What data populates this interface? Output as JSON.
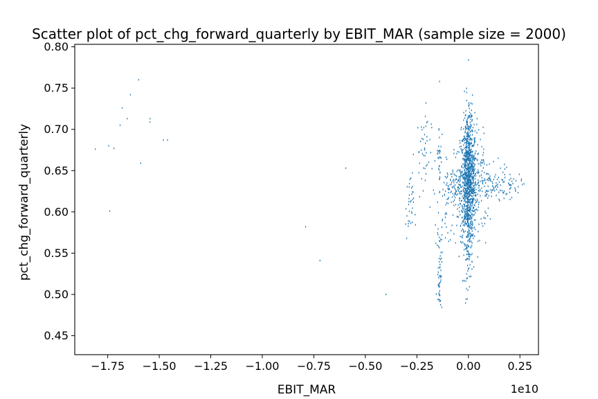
{
  "chart_data": {
    "type": "scatter",
    "title": "Scatter plot of pct_chg_forward_quarterly by EBIT_MAR (sample size = 2000)",
    "xlabel": "EBIT_MAR",
    "ylabel": "pct_chg_forward_quarterly",
    "x_offset_label": "1e10",
    "x_scale_factor": 10000000000,
    "xlim": [
      -1.91,
      0.34
    ],
    "ylim": [
      0.427,
      0.803
    ],
    "xticks": [
      -1.75,
      -1.5,
      -1.25,
      -1.0,
      -0.75,
      -0.5,
      -0.25,
      0.0,
      0.25
    ],
    "xtick_labels": [
      "−1.75",
      "−1.50",
      "−1.25",
      "−1.00",
      "−0.75",
      "−0.50",
      "−0.25",
      "0.00",
      "0.25"
    ],
    "yticks": [
      0.45,
      0.5,
      0.55,
      0.6,
      0.65,
      0.7,
      0.75,
      0.8
    ],
    "ytick_labels": [
      "0.45",
      "0.50",
      "0.55",
      "0.60",
      "0.65",
      "0.70",
      "0.75",
      "0.80"
    ],
    "grid": false,
    "legend": "none",
    "marker_color": "#1f77b4",
    "sample_size": 2000,
    "points_x": [
      -1.81,
      -1.745,
      -1.72,
      -1.69,
      -1.68,
      -1.655,
      -1.64,
      -1.6,
      -1.59,
      -1.545,
      -1.545,
      -1.48,
      -1.46,
      -1.74,
      -0.79,
      -0.72,
      -0.595,
      -0.4,
      0.0,
      -0.245,
      -0.24,
      -0.14,
      0.27
    ],
    "points_y": [
      0.676,
      0.68,
      0.677,
      0.705,
      0.726,
      0.713,
      0.742,
      0.76,
      0.659,
      0.713,
      0.709,
      0.687,
      0.687,
      0.601,
      0.582,
      0.541,
      0.653,
      0.5,
      0.784,
      0.702,
      0.672,
      0.758,
      0.634
    ],
    "clusters": [
      {
        "cx": 0.0,
        "sx": 0.02,
        "cy": 0.635,
        "sy": 0.035,
        "n": 900
      },
      {
        "cx": 0.0,
        "sx": 0.012,
        "cy": 0.69,
        "sy": 0.025,
        "n": 120
      },
      {
        "cx": 0.0,
        "sx": 0.01,
        "cy": 0.56,
        "sy": 0.025,
        "n": 100
      },
      {
        "cx": -0.05,
        "sx": 0.05,
        "cy": 0.63,
        "sy": 0.015,
        "n": 150
      },
      {
        "cx": 0.11,
        "sx": 0.04,
        "cy": 0.63,
        "sy": 0.012,
        "n": 80
      },
      {
        "cx": 0.2,
        "sx": 0.03,
        "cy": 0.633,
        "sy": 0.008,
        "n": 40
      },
      {
        "cx": -0.14,
        "sx": 0.006,
        "cy": 0.53,
        "sy": 0.025,
        "n": 55
      },
      {
        "cx": -0.14,
        "sx": 0.006,
        "cy": 0.67,
        "sy": 0.02,
        "n": 30
      },
      {
        "cx": -0.22,
        "sx": 0.02,
        "cy": 0.67,
        "sy": 0.03,
        "n": 45
      },
      {
        "cx": -0.285,
        "sx": 0.01,
        "cy": 0.605,
        "sy": 0.02,
        "n": 35
      },
      {
        "cx": -0.1,
        "sx": 0.025,
        "cy": 0.59,
        "sy": 0.02,
        "n": 30
      },
      {
        "cx": 0.06,
        "sx": 0.02,
        "cy": 0.66,
        "sy": 0.025,
        "n": 40
      },
      {
        "cx": 0.05,
        "sx": 0.025,
        "cy": 0.6,
        "sy": 0.02,
        "n": 30
      }
    ]
  }
}
